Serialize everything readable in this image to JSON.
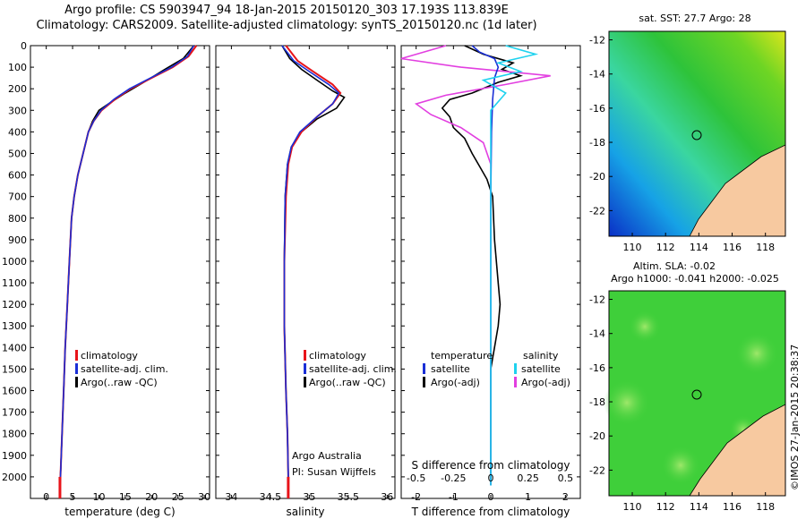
{
  "title": {
    "line1": "Argo profile: CS 5903947_94 18-Jan-2015 20150120_303 17.193S 113.839E",
    "line2": "Climatology: CARS2009. Satellite-adjusted climatology: synTS_20150120.nc (1d later)"
  },
  "colors": {
    "climatology": "#e8141a",
    "satellite": "#1a2fd6",
    "argo": "#000000",
    "sal_satellite": "#1fd2ee",
    "sal_argo": "#e23fe0",
    "land": "#f7c9a0"
  },
  "depth_ticks": [
    "0",
    "100",
    "200",
    "300",
    "400",
    "500",
    "600",
    "700",
    "800",
    "900",
    "1000",
    "1100",
    "1200",
    "1300",
    "1400",
    "1500",
    "1600",
    "1700",
    "1800",
    "1900",
    "2000"
  ],
  "panels": {
    "temperature": {
      "xlabel": "temperature (deg C)",
      "ticks": [
        "0",
        "5",
        "10",
        "15",
        "20",
        "25",
        "30"
      ],
      "legend": [
        "climatology",
        "satellite-adj. clim.",
        "Argo(..raw -QC)"
      ]
    },
    "salinity": {
      "xlabel": "salinity",
      "ticks": [
        "34",
        "34.5",
        "35",
        "35.5",
        "36"
      ],
      "legend": [
        "climatology",
        "satellite-adj. clim.",
        "Argo(..raw -QC)"
      ],
      "annotation1": "Argo Australia",
      "annotation2": "PI: Susan Wijffels"
    },
    "difference": {
      "xlabel": "T difference from climatology",
      "top_label": "S difference from climatology",
      "t_ticks": [
        "-2",
        "-1",
        "0",
        "1",
        "2"
      ],
      "s_ticks": [
        "-0.5",
        "-0.25",
        "0",
        "0.25",
        "0.5"
      ],
      "legend_t_head": "temperature",
      "legend_t": [
        "satellite",
        "Argo(-adj)"
      ],
      "legend_s_head": "salinity",
      "legend_s": [
        "satellite",
        "Argo(-adj)"
      ]
    }
  },
  "maps": {
    "sst": {
      "title": "sat. SST: 27.7 Argo: 28",
      "lat_ticks": [
        "-12",
        "-14",
        "-16",
        "-18",
        "-20",
        "-22"
      ],
      "lon_ticks": [
        "110",
        "112",
        "114",
        "116",
        "118"
      ]
    },
    "sla": {
      "title1": "Altim. SLA: -0.02",
      "title2": "Argo h1000: -0.041 h2000: -0.025",
      "lat_ticks": [
        "-12",
        "-14",
        "-16",
        "-18",
        "-20",
        "-22"
      ],
      "lon_ticks": [
        "110",
        "112",
        "114",
        "116",
        "118"
      ]
    }
  },
  "stamp": "©IMOS 27-Jan-2015 20:38:37",
  "chart_data": [
    {
      "type": "line",
      "panel": "temperature",
      "xlabel": "temperature (deg C)",
      "ylabel": "",
      "xlim": [
        -3,
        31
      ],
      "ylim": [
        2100,
        0
      ],
      "series": [
        {
          "name": "climatology",
          "points": [
            [
              28.5,
              0
            ],
            [
              27,
              50
            ],
            [
              24,
              100
            ],
            [
              20,
              150
            ],
            [
              16,
              200
            ],
            [
              13,
              250
            ],
            [
              10.5,
              300
            ],
            [
              9,
              350
            ],
            [
              8,
              400
            ],
            [
              7,
              500
            ],
            [
              6,
              600
            ],
            [
              5.3,
              700
            ],
            [
              4.8,
              800
            ],
            [
              4.4,
              1000
            ],
            [
              4,
              1200
            ],
            [
              3.6,
              1400
            ],
            [
              3.3,
              1600
            ],
            [
              3,
              1800
            ],
            [
              2.7,
              2000
            ],
            [
              2.6,
              2050
            ]
          ]
        },
        {
          "name": "satellite-adj. clim.",
          "points": [
            [
              28,
              0
            ],
            [
              26.8,
              50
            ],
            [
              23.8,
              100
            ],
            [
              19.8,
              150
            ],
            [
              15.8,
              200
            ],
            [
              12.8,
              250
            ],
            [
              10.4,
              300
            ],
            [
              9,
              350
            ],
            [
              8,
              400
            ],
            [
              7,
              500
            ],
            [
              6,
              600
            ],
            [
              5.3,
              700
            ],
            [
              4.8,
              800
            ],
            [
              4.4,
              1000
            ],
            [
              4,
              1200
            ],
            [
              3.6,
              1400
            ],
            [
              3.3,
              1600
            ],
            [
              3,
              1800
            ],
            [
              2.7,
              2000
            ],
            [
              2.6,
              2050
            ]
          ]
        },
        {
          "name": "Argo(..raw -QC)",
          "points": [
            [
              28,
              0
            ],
            [
              26,
              60
            ],
            [
              22.5,
              110
            ],
            [
              18.5,
              170
            ],
            [
              15,
              220
            ],
            [
              11.8,
              270
            ],
            [
              10,
              300
            ],
            [
              8.8,
              350
            ],
            [
              8,
              400
            ],
            [
              7,
              500
            ],
            [
              6,
              600
            ],
            [
              5.3,
              700
            ],
            [
              4.8,
              800
            ],
            [
              4.4,
              1000
            ],
            [
              4,
              1200
            ],
            [
              3.6,
              1400
            ],
            [
              3.3,
              1600
            ],
            [
              3,
              1800
            ],
            [
              2.7,
              2000
            ],
            [
              2.6,
              2040
            ]
          ]
        }
      ]
    },
    {
      "type": "line",
      "panel": "salinity",
      "xlabel": "salinity",
      "ylabel": "",
      "xlim": [
        33.8,
        36.1
      ],
      "ylim": [
        2100,
        0
      ],
      "series": [
        {
          "name": "climatology",
          "points": [
            [
              34.7,
              0
            ],
            [
              34.85,
              70
            ],
            [
              35.05,
              120
            ],
            [
              35.3,
              180
            ],
            [
              35.4,
              220
            ],
            [
              35.3,
              270
            ],
            [
              35.1,
              330
            ],
            [
              34.9,
              400
            ],
            [
              34.78,
              470
            ],
            [
              34.73,
              550
            ],
            [
              34.7,
              700
            ],
            [
              34.68,
              1000
            ],
            [
              34.68,
              1300
            ],
            [
              34.7,
              1600
            ],
            [
              34.72,
              1800
            ],
            [
              34.73,
              2000
            ],
            [
              34.73,
              2050
            ]
          ]
        },
        {
          "name": "satellite-adj. clim.",
          "points": [
            [
              34.65,
              0
            ],
            [
              34.8,
              70
            ],
            [
              35.0,
              120
            ],
            [
              35.25,
              180
            ],
            [
              35.38,
              220
            ],
            [
              35.3,
              270
            ],
            [
              35.1,
              330
            ],
            [
              34.88,
              400
            ],
            [
              34.77,
              470
            ],
            [
              34.72,
              550
            ],
            [
              34.69,
              700
            ],
            [
              34.68,
              1000
            ],
            [
              34.68,
              1300
            ],
            [
              34.7,
              1600
            ],
            [
              34.72,
              1800
            ],
            [
              34.73,
              2000
            ],
            [
              34.73,
              2050
            ]
          ]
        },
        {
          "name": "Argo(..raw -QC)",
          "points": [
            [
              34.65,
              0
            ],
            [
              34.75,
              60
            ],
            [
              34.9,
              110
            ],
            [
              35.1,
              160
            ],
            [
              35.3,
              210
            ],
            [
              35.45,
              240
            ],
            [
              35.35,
              290
            ],
            [
              35.1,
              340
            ],
            [
              34.9,
              400
            ],
            [
              34.77,
              470
            ],
            [
              34.72,
              550
            ],
            [
              34.69,
              700
            ],
            [
              34.68,
              1000
            ],
            [
              34.68,
              1300
            ],
            [
              34.7,
              1600
            ],
            [
              34.72,
              1800
            ],
            [
              34.73,
              2000
            ],
            [
              34.73,
              2040
            ]
          ]
        }
      ]
    },
    {
      "type": "line",
      "panel": "difference",
      "xlabel": "T difference from climatology",
      "ylabel": "",
      "xlim": [
        -2.4,
        2.4
      ],
      "ylim": [
        2100,
        0
      ],
      "series": [
        {
          "name": "satellite",
          "quantity": "temperature",
          "points": [
            [
              -0.5,
              0
            ],
            [
              -0.3,
              30
            ],
            [
              0.1,
              60
            ],
            [
              0.2,
              100
            ],
            [
              0.1,
              150
            ],
            [
              0.05,
              250
            ],
            [
              0.02,
              400
            ],
            [
              0,
              700
            ],
            [
              0,
              1000
            ],
            [
              0,
              1500
            ],
            [
              0,
              2040
            ]
          ]
        },
        {
          "name": "Argo(-adj)",
          "quantity": "temperature",
          "points": [
            [
              -0.7,
              0
            ],
            [
              -0.2,
              40
            ],
            [
              0.6,
              80
            ],
            [
              0.3,
              110
            ],
            [
              0.8,
              140
            ],
            [
              0.2,
              170
            ],
            [
              -0.5,
              220
            ],
            [
              -1.1,
              250
            ],
            [
              -1.3,
              290
            ],
            [
              -1.1,
              330
            ],
            [
              -1.0,
              380
            ],
            [
              -0.7,
              430
            ],
            [
              -0.5,
              500
            ],
            [
              -0.3,
              560
            ],
            [
              -0.1,
              620
            ],
            [
              0.05,
              700
            ],
            [
              0.1,
              900
            ],
            [
              0.2,
              1100
            ],
            [
              0.25,
              1200
            ],
            [
              0.2,
              1300
            ],
            [
              0.1,
              1400
            ],
            [
              0,
              1500
            ],
            [
              0,
              2040
            ]
          ]
        },
        {
          "name": "satellite",
          "quantity": "salinity",
          "points": [
            [
              0.1,
              0
            ],
            [
              0.3,
              40
            ],
            [
              0.05,
              80
            ],
            [
              0.2,
              120
            ],
            [
              -0.05,
              160
            ],
            [
              0.1,
              220
            ],
            [
              0,
              300
            ],
            [
              0,
              400
            ],
            [
              0,
              600
            ],
            [
              0,
              1000
            ],
            [
              0,
              1500
            ],
            [
              0,
              2040
            ]
          ]
        },
        {
          "name": "Argo(-adj)",
          "quantity": "salinity",
          "points": [
            [
              -0.3,
              0
            ],
            [
              -0.6,
              60
            ],
            [
              -0.2,
              100
            ],
            [
              0.4,
              140
            ],
            [
              0.1,
              180
            ],
            [
              -0.3,
              230
            ],
            [
              -0.5,
              270
            ],
            [
              -0.4,
              320
            ],
            [
              -0.2,
              380
            ],
            [
              -0.05,
              450
            ],
            [
              0,
              550
            ],
            [
              0,
              700
            ],
            [
              0,
              1000
            ],
            [
              0,
              1500
            ],
            [
              0,
              2040
            ]
          ]
        }
      ]
    }
  ]
}
